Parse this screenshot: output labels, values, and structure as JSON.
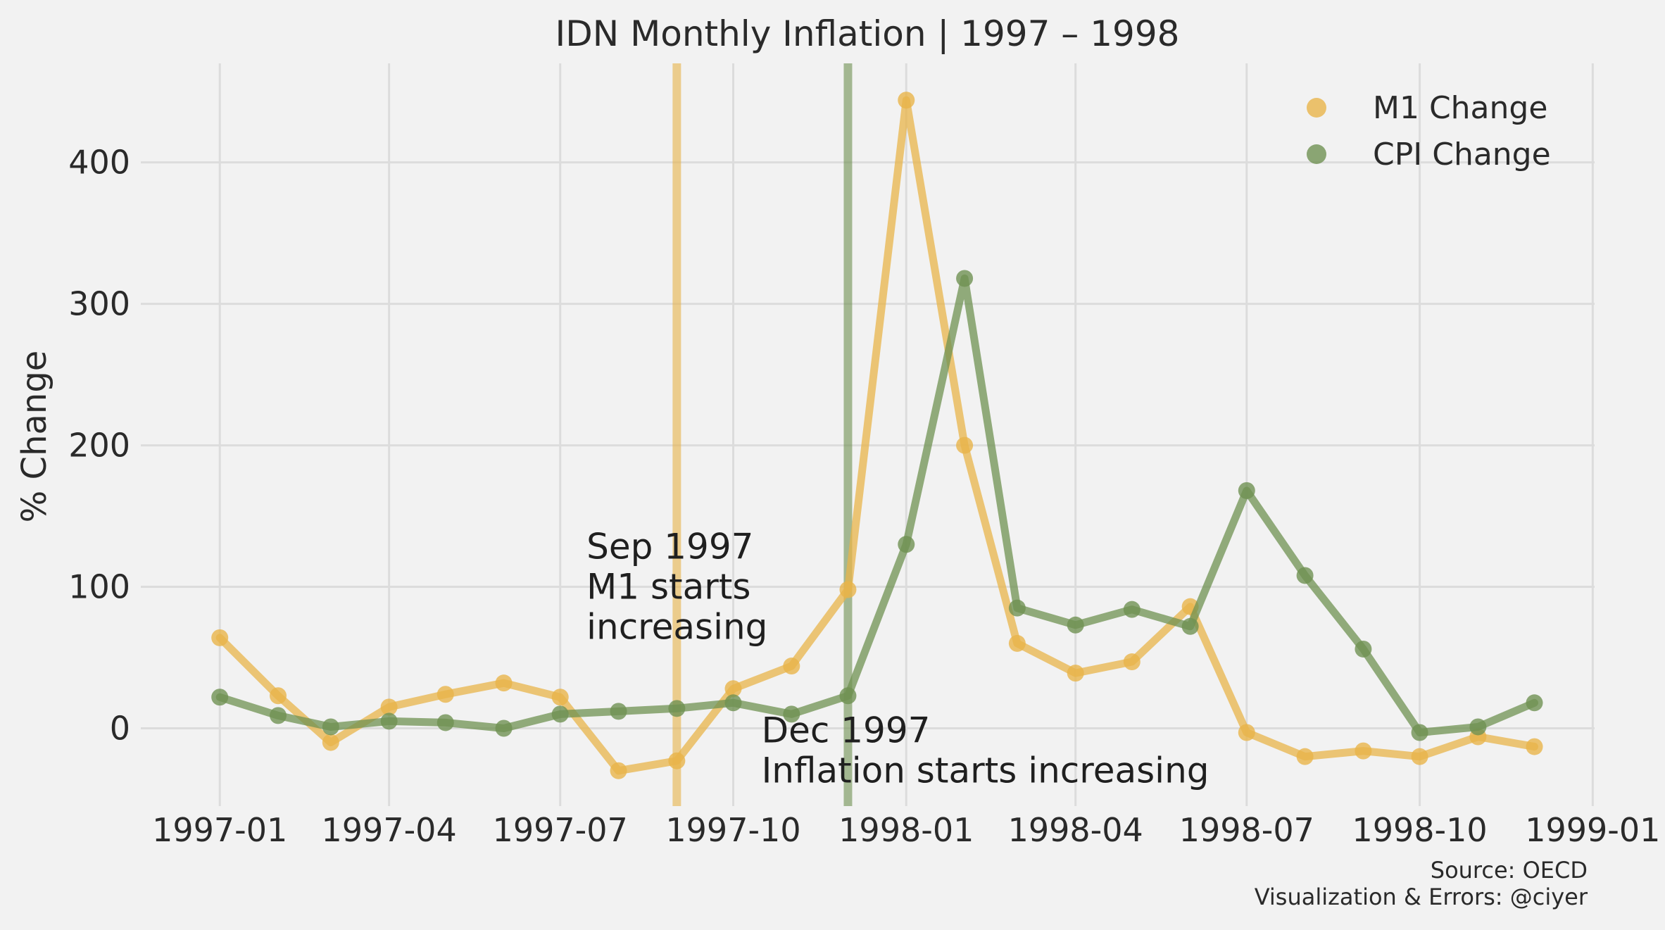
{
  "chart_data": {
    "type": "line",
    "title": "IDN Monthly Inflation | 1997 – 1998",
    "xlabel": "",
    "ylabel": "% Change",
    "ylim": [
      -55,
      470
    ],
    "xlim": [
      "1996-11-20",
      "1999-01-02"
    ],
    "x_ticks": [
      "1997-01",
      "1997-04",
      "1997-07",
      "1997-10",
      "1998-01",
      "1998-04",
      "1998-07",
      "1998-10",
      "1999-01"
    ],
    "y_ticks": [
      0,
      100,
      200,
      300,
      400
    ],
    "grid": true,
    "legend_position": "top-right",
    "series": [
      {
        "name": "M1 Change",
        "color": "#e8b44a",
        "x": [
          "1997-01",
          "1997-02",
          "1997-03",
          "1997-04",
          "1997-05",
          "1997-06",
          "1997-07",
          "1997-08",
          "1997-09",
          "1997-10",
          "1997-11",
          "1997-12",
          "1998-01",
          "1998-02",
          "1998-03",
          "1998-04",
          "1998-05",
          "1998-06",
          "1998-07",
          "1998-08",
          "1998-09",
          "1998-10",
          "1998-11",
          "1998-12"
        ],
        "values": [
          64,
          23,
          -10,
          15,
          24,
          32,
          22,
          -30,
          -23,
          28,
          44,
          98,
          444,
          200,
          60,
          39,
          47,
          86,
          -3,
          -20,
          -16,
          -20,
          -6,
          -13
        ]
      },
      {
        "name": "CPI Change",
        "color": "#6f9152",
        "x": [
          "1997-01",
          "1997-02",
          "1997-03",
          "1997-04",
          "1997-05",
          "1997-06",
          "1997-07",
          "1997-08",
          "1997-09",
          "1997-10",
          "1997-11",
          "1997-12",
          "1998-01",
          "1998-02",
          "1998-03",
          "1998-04",
          "1998-05",
          "1998-06",
          "1998-07",
          "1998-08",
          "1998-09",
          "1998-10",
          "1998-11",
          "1998-12"
        ],
        "values": [
          22,
          9,
          1,
          5,
          4,
          0,
          10,
          12,
          14,
          18,
          10,
          23,
          130,
          318,
          85,
          73,
          84,
          72,
          168,
          108,
          56,
          -3,
          1,
          18
        ]
      }
    ],
    "vlines": [
      {
        "x": "1997-09-01",
        "color": "#e8b44a"
      },
      {
        "x": "1997-12-01",
        "color": "#6f9152"
      }
    ],
    "annotations": [
      {
        "lines": [
          "Sep 1997",
          "M1 starts",
          "increasing"
        ],
        "x": "1997-07-15",
        "y": 120
      },
      {
        "lines": [
          "Dec 1997",
          "Inflation starts increasing"
        ],
        "x": "1997-10-16",
        "y": -10
      }
    ],
    "footer": [
      "Source: OECD",
      "Visualization & Errors: @ciyer"
    ]
  }
}
